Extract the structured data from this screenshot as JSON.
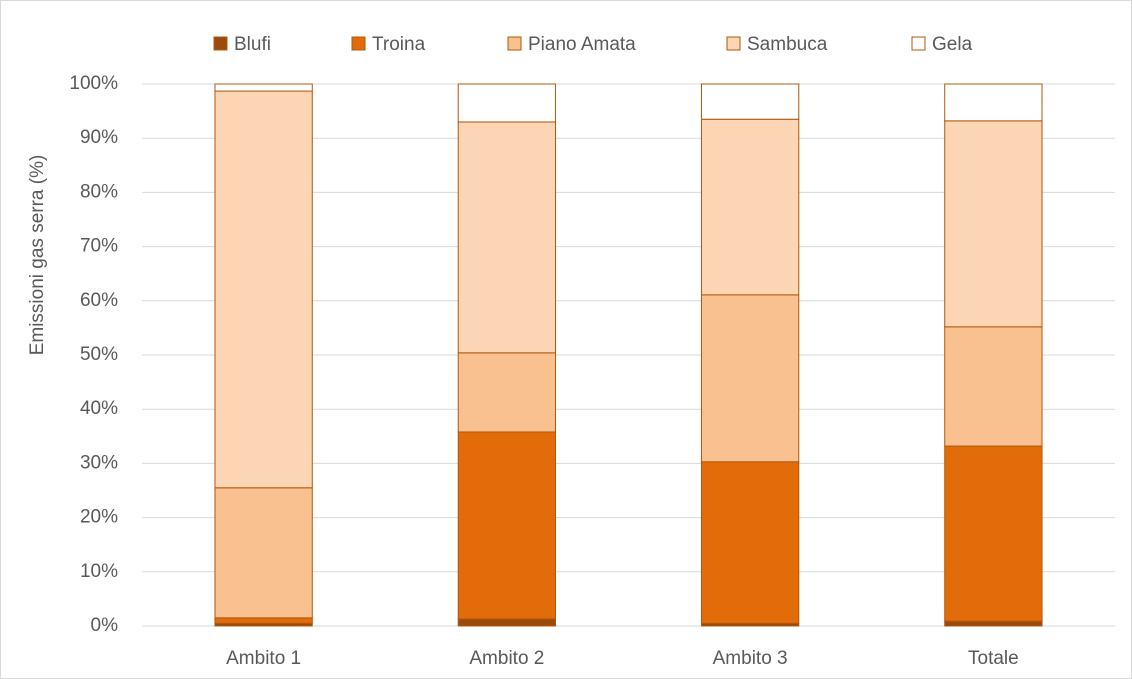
{
  "chart_data": {
    "type": "stacked_bar",
    "y_label": "Emissioni gas serra (%)",
    "categories": [
      "Ambito 1",
      "Ambito 2",
      "Ambito 3",
      "Totale"
    ],
    "series": [
      {
        "name": "Blufi",
        "color": "#9c4a0b",
        "values": [
          0.5,
          1.3,
          0.5,
          0.9
        ]
      },
      {
        "name": "Troina",
        "color": "#e36c0a",
        "values": [
          1.0,
          34.5,
          29.8,
          32.3
        ]
      },
      {
        "name": "Piano Amata",
        "color": "#f9c090",
        "values": [
          24.0,
          14.6,
          30.8,
          22.0
        ]
      },
      {
        "name": "Sambuca",
        "color": "#fcd5b5",
        "values": [
          73.2,
          42.6,
          32.4,
          38.0
        ]
      },
      {
        "name": "Gela",
        "color": "#ffffff",
        "values": [
          1.3,
          7.0,
          6.5,
          6.8
        ]
      }
    ],
    "ylim": [
      0,
      100
    ],
    "yticks": [
      {
        "value": 0,
        "label": "0%"
      },
      {
        "value": 10,
        "label": "10%"
      },
      {
        "value": 20,
        "label": "20%"
      },
      {
        "value": 30,
        "label": "30%"
      },
      {
        "value": 40,
        "label": "40%"
      },
      {
        "value": 50,
        "label": "50%"
      },
      {
        "value": 60,
        "label": "60%"
      },
      {
        "value": 70,
        "label": "70%"
      },
      {
        "value": 80,
        "label": "80%"
      },
      {
        "value": 90,
        "label": "90%"
      },
      {
        "value": 100,
        "label": "100%"
      }
    ],
    "grid": true,
    "legend": "top"
  }
}
